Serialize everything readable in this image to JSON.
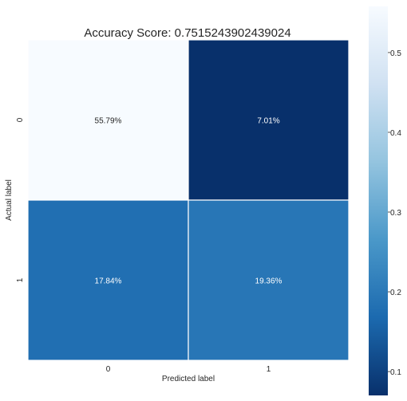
{
  "chart_data": {
    "type": "heatmap",
    "title": "Accuracy Score: 0.7515243902439024",
    "xlabel": "Predicted label",
    "ylabel": "Actual label",
    "x_categories": [
      "0",
      "1"
    ],
    "y_categories": [
      "0",
      "1"
    ],
    "values": [
      [
        0.5579,
        0.0701
      ],
      [
        0.1784,
        0.1936
      ]
    ],
    "annotations": [
      [
        "55.79%",
        "7.01%"
      ],
      [
        "17.84%",
        "19.36%"
      ]
    ],
    "colormap": "Blues_r",
    "colorbar": {
      "min": 0.0701,
      "max": 0.5579,
      "ticks": [
        0.1,
        0.2,
        0.3,
        0.4,
        0.5
      ],
      "tick_labels": [
        "0.1",
        "0.2",
        "0.3",
        "0.4",
        "0.5"
      ]
    }
  }
}
